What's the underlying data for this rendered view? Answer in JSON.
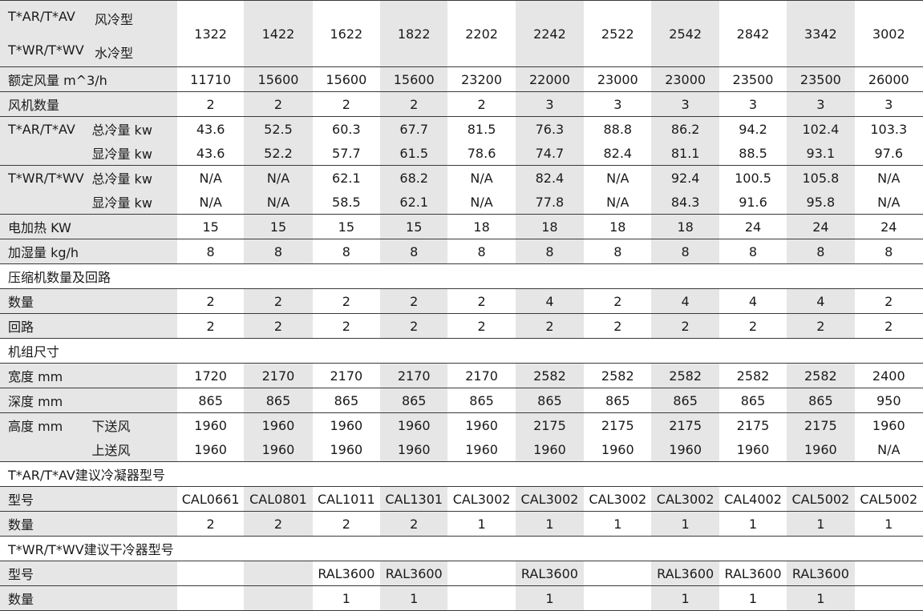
{
  "header": {
    "line1_model": "T*AR/T*AV",
    "line1_type": "风冷型",
    "line2_model": "T*WR/T*WV",
    "line2_type": "水冷型",
    "models": [
      "1322",
      "1422",
      "1622",
      "1822",
      "2202",
      "2242",
      "2522",
      "2542",
      "2842",
      "3342",
      "3002"
    ]
  },
  "rows": [
    {
      "label": "额定风量 m^3/h",
      "sub": "",
      "values": [
        "11710",
        "15600",
        "15600",
        "15600",
        "23200",
        "22000",
        "23000",
        "23000",
        "23500",
        "23500",
        "26000"
      ],
      "border": true
    },
    {
      "label": "风机数量",
      "sub": "",
      "values": [
        "2",
        "2",
        "2",
        "2",
        "2",
        "3",
        "3",
        "3",
        "3",
        "3",
        "3"
      ],
      "border": true
    },
    {
      "label": "T*AR/T*AV",
      "sub": "总冷量 kw",
      "values": [
        "43.6",
        "52.5",
        "60.3",
        "67.7",
        "81.5",
        "76.3",
        "88.8",
        "86.2",
        "94.2",
        "102.4",
        "103.3"
      ],
      "border": true
    },
    {
      "label": "",
      "sub": "显冷量 kw",
      "values": [
        "43.6",
        "52.2",
        "57.7",
        "61.5",
        "78.6",
        "74.7",
        "82.4",
        "81.1",
        "88.5",
        "93.1",
        "97.6"
      ],
      "border": false
    },
    {
      "label": "T*WR/T*WV",
      "sub": "总冷量 kw",
      "values": [
        "N/A",
        "N/A",
        "62.1",
        "68.2",
        "N/A",
        "82.4",
        "N/A",
        "92.4",
        "100.5",
        "105.8",
        "N/A"
      ],
      "border": true
    },
    {
      "label": "",
      "sub": "显冷量 kw",
      "values": [
        "N/A",
        "N/A",
        "58.5",
        "62.1",
        "N/A",
        "77.8",
        "N/A",
        "84.3",
        "91.6",
        "95.8",
        "N/A"
      ],
      "border": false
    },
    {
      "label": "电加热 KW",
      "sub": "",
      "values": [
        "15",
        "15",
        "15",
        "15",
        "18",
        "18",
        "18",
        "18",
        "24",
        "24",
        "24"
      ],
      "border": true
    },
    {
      "label": "加湿量 kg/h",
      "sub": "",
      "values": [
        "8",
        "8",
        "8",
        "8",
        "8",
        "8",
        "8",
        "8",
        "8",
        "8",
        "8"
      ],
      "border": true
    },
    {
      "section": "压缩机数量及回路",
      "border": true
    },
    {
      "label": "数量",
      "sub": "",
      "values": [
        "2",
        "2",
        "2",
        "2",
        "2",
        "4",
        "2",
        "4",
        "4",
        "4",
        "2"
      ],
      "border": true
    },
    {
      "label": "回路",
      "sub": "",
      "values": [
        "2",
        "2",
        "2",
        "2",
        "2",
        "2",
        "2",
        "2",
        "2",
        "2",
        "2"
      ],
      "border": true
    },
    {
      "section": "机组尺寸",
      "border": true
    },
    {
      "label": "宽度 mm",
      "sub": "",
      "values": [
        "1720",
        "2170",
        "2170",
        "2170",
        "2170",
        "2582",
        "2582",
        "2582",
        "2582",
        "2582",
        "2400"
      ],
      "border": true
    },
    {
      "label": "深度 mm",
      "sub": "",
      "values": [
        "865",
        "865",
        "865",
        "865",
        "865",
        "865",
        "865",
        "865",
        "865",
        "865",
        "950"
      ],
      "border": true
    },
    {
      "label": "高度 mm",
      "sub": "下送风",
      "values": [
        "1960",
        "1960",
        "1960",
        "1960",
        "1960",
        "2175",
        "2175",
        "2175",
        "2175",
        "2175",
        "1960"
      ],
      "border": true
    },
    {
      "label": "",
      "sub": "上送风",
      "values": [
        "1960",
        "1960",
        "1960",
        "1960",
        "1960",
        "1960",
        "1960",
        "1960",
        "1960",
        "1960",
        "N/A"
      ],
      "border": false
    },
    {
      "section": "T*AR/T*AV建议冷凝器型号",
      "border": true
    },
    {
      "label": "型号",
      "sub": "",
      "values": [
        "CAL0661",
        "CAL0801",
        "CAL1011",
        "CAL1301",
        "CAL3002",
        "CAL3002",
        "CAL3002",
        "CAL3002",
        "CAL4002",
        "CAL5002",
        "CAL5002"
      ],
      "border": true
    },
    {
      "label": "数量",
      "sub": "",
      "values": [
        "2",
        "2",
        "2",
        "2",
        "1",
        "1",
        "1",
        "1",
        "1",
        "1",
        "1"
      ],
      "border": true
    },
    {
      "section": "T*WR/T*WV建议干冷器型号",
      "border": true
    },
    {
      "label": "型号",
      "sub": "",
      "values": [
        "",
        "",
        "RAL3600",
        "RAL3600",
        "",
        "RAL3600",
        "",
        "RAL3600",
        "RAL3600",
        "RAL3600",
        ""
      ],
      "border": true
    },
    {
      "label": "数量",
      "sub": "",
      "values": [
        "",
        "",
        "1",
        "1",
        "",
        "1",
        "",
        "1",
        "1",
        "1",
        ""
      ],
      "border": true
    }
  ]
}
